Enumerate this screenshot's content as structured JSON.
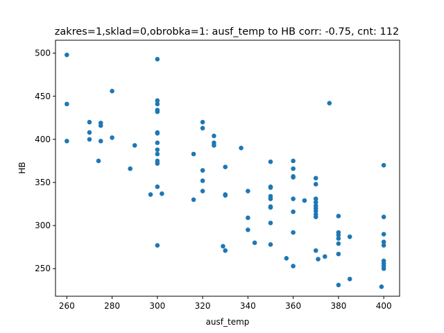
{
  "chart_data": {
    "type": "scatter",
    "title": "zakres=1,sklad=0,obrobka=1: ausf_temp to HB corr: -0.75, cnt: 112",
    "xlabel": "ausf_temp",
    "ylabel": "HB",
    "xlim": [
      255,
      407
    ],
    "ylim": [
      218,
      515
    ],
    "xticks": [
      260,
      280,
      300,
      320,
      340,
      360,
      380,
      400
    ],
    "yticks": [
      250,
      300,
      350,
      400,
      450,
      500
    ],
    "grid": false,
    "legend": "none",
    "point_color": "#1f77b4",
    "points": [
      {
        "x": 260,
        "y": 498
      },
      {
        "x": 260,
        "y": 441
      },
      {
        "x": 260,
        "y": 398
      },
      {
        "x": 270,
        "y": 420
      },
      {
        "x": 270,
        "y": 408
      },
      {
        "x": 270,
        "y": 400
      },
      {
        "x": 274,
        "y": 375
      },
      {
        "x": 275,
        "y": 419
      },
      {
        "x": 275,
        "y": 416
      },
      {
        "x": 275,
        "y": 398
      },
      {
        "x": 280,
        "y": 456
      },
      {
        "x": 280,
        "y": 402
      },
      {
        "x": 288,
        "y": 366
      },
      {
        "x": 290,
        "y": 393
      },
      {
        "x": 297,
        "y": 336
      },
      {
        "x": 300,
        "y": 493
      },
      {
        "x": 300,
        "y": 445
      },
      {
        "x": 300,
        "y": 441
      },
      {
        "x": 300,
        "y": 434
      },
      {
        "x": 300,
        "y": 432
      },
      {
        "x": 300,
        "y": 408
      },
      {
        "x": 300,
        "y": 407
      },
      {
        "x": 300,
        "y": 396
      },
      {
        "x": 300,
        "y": 388
      },
      {
        "x": 300,
        "y": 383
      },
      {
        "x": 300,
        "y": 375
      },
      {
        "x": 300,
        "y": 372
      },
      {
        "x": 300,
        "y": 345
      },
      {
        "x": 300,
        "y": 277
      },
      {
        "x": 302,
        "y": 337
      },
      {
        "x": 316,
        "y": 383
      },
      {
        "x": 316,
        "y": 330
      },
      {
        "x": 320,
        "y": 420
      },
      {
        "x": 320,
        "y": 413
      },
      {
        "x": 320,
        "y": 364
      },
      {
        "x": 320,
        "y": 352
      },
      {
        "x": 320,
        "y": 340
      },
      {
        "x": 325,
        "y": 404
      },
      {
        "x": 325,
        "y": 396
      },
      {
        "x": 325,
        "y": 393
      },
      {
        "x": 329,
        "y": 276
      },
      {
        "x": 330,
        "y": 368
      },
      {
        "x": 330,
        "y": 336
      },
      {
        "x": 330,
        "y": 335
      },
      {
        "x": 330,
        "y": 271
      },
      {
        "x": 337,
        "y": 390
      },
      {
        "x": 340,
        "y": 340
      },
      {
        "x": 340,
        "y": 309
      },
      {
        "x": 340,
        "y": 295
      },
      {
        "x": 343,
        "y": 280
      },
      {
        "x": 350,
        "y": 374
      },
      {
        "x": 350,
        "y": 345
      },
      {
        "x": 350,
        "y": 344
      },
      {
        "x": 350,
        "y": 334
      },
      {
        "x": 350,
        "y": 331
      },
      {
        "x": 350,
        "y": 322
      },
      {
        "x": 350,
        "y": 321
      },
      {
        "x": 350,
        "y": 303
      },
      {
        "x": 350,
        "y": 278
      },
      {
        "x": 357,
        "y": 262
      },
      {
        "x": 360,
        "y": 375
      },
      {
        "x": 360,
        "y": 366
      },
      {
        "x": 360,
        "y": 357
      },
      {
        "x": 360,
        "y": 356
      },
      {
        "x": 360,
        "y": 331
      },
      {
        "x": 360,
        "y": 316
      },
      {
        "x": 360,
        "y": 292
      },
      {
        "x": 360,
        "y": 253
      },
      {
        "x": 365,
        "y": 329
      },
      {
        "x": 370,
        "y": 355
      },
      {
        "x": 370,
        "y": 348
      },
      {
        "x": 370,
        "y": 331
      },
      {
        "x": 370,
        "y": 327
      },
      {
        "x": 370,
        "y": 323
      },
      {
        "x": 370,
        "y": 320
      },
      {
        "x": 370,
        "y": 317
      },
      {
        "x": 370,
        "y": 313
      },
      {
        "x": 370,
        "y": 310
      },
      {
        "x": 370,
        "y": 271
      },
      {
        "x": 371,
        "y": 261
      },
      {
        "x": 374,
        "y": 264
      },
      {
        "x": 376,
        "y": 442
      },
      {
        "x": 380,
        "y": 311
      },
      {
        "x": 380,
        "y": 292
      },
      {
        "x": 380,
        "y": 289
      },
      {
        "x": 380,
        "y": 285
      },
      {
        "x": 380,
        "y": 279
      },
      {
        "x": 380,
        "y": 267
      },
      {
        "x": 380,
        "y": 231
      },
      {
        "x": 385,
        "y": 287
      },
      {
        "x": 385,
        "y": 238
      },
      {
        "x": 399,
        "y": 229
      },
      {
        "x": 400,
        "y": 370
      },
      {
        "x": 400,
        "y": 310
      },
      {
        "x": 400,
        "y": 290
      },
      {
        "x": 400,
        "y": 281
      },
      {
        "x": 400,
        "y": 277
      },
      {
        "x": 400,
        "y": 259
      },
      {
        "x": 400,
        "y": 256
      },
      {
        "x": 400,
        "y": 253
      },
      {
        "x": 400,
        "y": 250
      }
    ]
  }
}
